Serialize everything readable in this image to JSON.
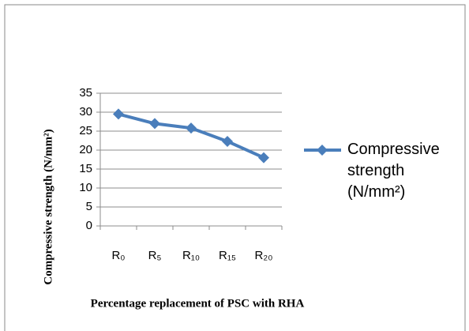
{
  "chart_data": {
    "type": "line",
    "x_label": "Percentage replacement of PSC with RHA",
    "y_label": "Compressive strength (N/mm²)",
    "categories": [
      "R₀",
      "R₅",
      "R₁₀",
      "R₁₅",
      "R₂₀"
    ],
    "series": [
      {
        "name": "Compressive strength (N/mm²)",
        "color": "#4a7ebb",
        "values": [
          29.5,
          27,
          25.8,
          22.3,
          18
        ]
      }
    ],
    "ylim": [
      0,
      35
    ],
    "yticks": [
      0,
      5,
      10,
      15,
      20,
      25,
      30,
      35
    ],
    "grid": true,
    "legend": "right"
  }
}
